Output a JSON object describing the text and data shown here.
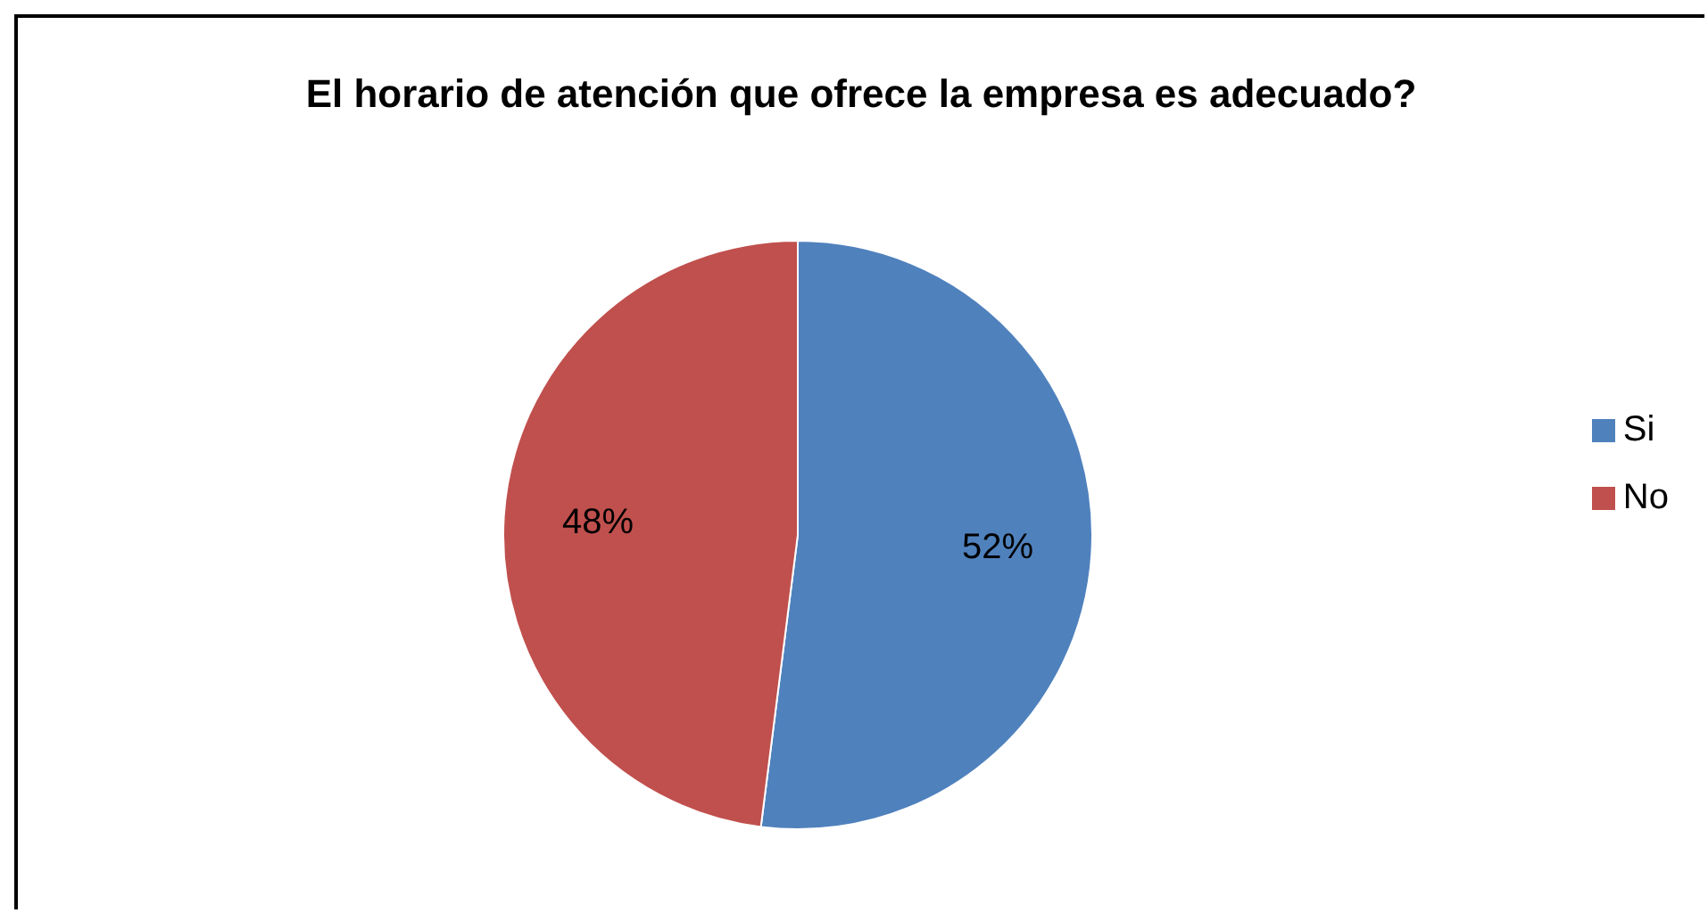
{
  "chart_data": {
    "type": "pie",
    "title": "El horario de atención que ofrece la empresa es adecuado?",
    "categories": [
      "Si",
      "No"
    ],
    "values": [
      52,
      48
    ],
    "colors": [
      "#4f81bd",
      "#c0504d"
    ],
    "value_labels": [
      "52%",
      "48%"
    ],
    "legend": "right"
  }
}
